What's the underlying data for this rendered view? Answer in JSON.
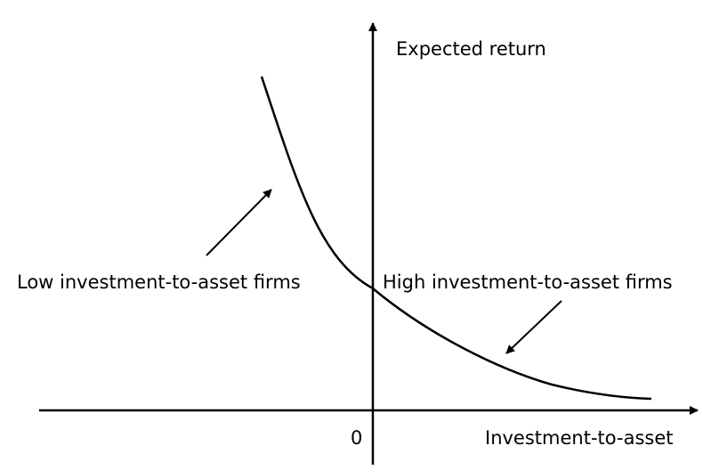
{
  "diagram": {
    "y_axis_label": "Expected return",
    "x_axis_label": "Investment-to-asset",
    "origin_label": "0",
    "curve": "downward-sloping, convex",
    "annotations": [
      {
        "text": "Low investment-to-asset firms",
        "points_to": "upper-left part of curve"
      },
      {
        "text": "High investment-to-asset firms",
        "points_to": "lower-right part of curve"
      }
    ],
    "colors": {
      "ink": "#000000",
      "background": "#ffffff"
    }
  }
}
